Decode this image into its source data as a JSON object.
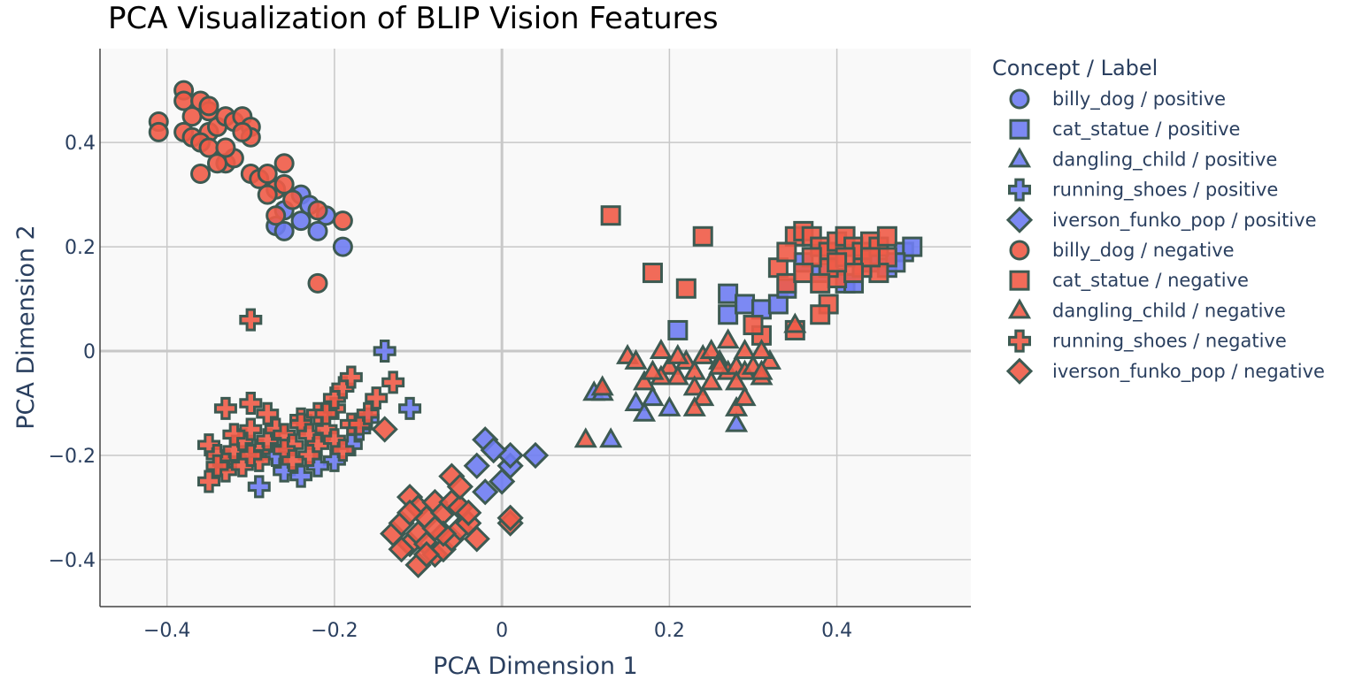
{
  "chart_data": {
    "type": "scatter",
    "title": "PCA Visualization of BLIP Vision Features",
    "xlabel": "PCA Dimension 1",
    "ylabel": "PCA Dimension 2",
    "xlim": [
      -0.48,
      0.56
    ],
    "ylim": [
      -0.49,
      0.58
    ],
    "xticks": [
      -0.4,
      -0.2,
      0,
      0.2,
      0.4
    ],
    "xtick_labels": [
      "−0.4",
      "−0.2",
      "0",
      "0.2",
      "0.4"
    ],
    "yticks": [
      -0.4,
      -0.2,
      0,
      0.2,
      0.4
    ],
    "ytick_labels": [
      "−0.4",
      "−0.2",
      "0",
      "0.2",
      "0.4"
    ],
    "grid": true,
    "legend_title": "Concept / Label",
    "legend_position": "right",
    "colors": {
      "positive": "#6e7cf2",
      "negative": "#ef5b47",
      "marker_outline": "#3d5a52",
      "grid": "#c8c8c8",
      "plot_bg": "#f9f9f9"
    },
    "series": [
      {
        "name": "billy_dog / positive",
        "marker": "circle",
        "label": "positive",
        "points": [
          [
            -0.27,
            0.24
          ],
          [
            -0.26,
            0.23
          ],
          [
            -0.24,
            0.3
          ],
          [
            -0.24,
            0.25
          ],
          [
            -0.22,
            0.23
          ],
          [
            -0.21,
            0.26
          ],
          [
            -0.19,
            0.2
          ],
          [
            -0.26,
            0.27
          ],
          [
            -0.23,
            0.28
          ]
        ]
      },
      {
        "name": "cat_statue / positive",
        "marker": "square",
        "label": "positive",
        "points": [
          [
            0.21,
            0.04
          ],
          [
            0.27,
            0.11
          ],
          [
            0.27,
            0.07
          ],
          [
            0.29,
            0.09
          ],
          [
            0.31,
            0.08
          ],
          [
            0.33,
            0.09
          ],
          [
            0.34,
            0.12
          ],
          [
            0.38,
            0.15
          ],
          [
            0.41,
            0.13
          ],
          [
            0.42,
            0.13
          ],
          [
            0.44,
            0.17
          ],
          [
            0.46,
            0.16
          ],
          [
            0.48,
            0.19
          ],
          [
            0.49,
            0.2
          ],
          [
            0.47,
            0.17
          ],
          [
            0.36,
            0.17
          ]
        ]
      },
      {
        "name": "dangling_child / positive",
        "marker": "triangle",
        "label": "positive",
        "points": [
          [
            0.11,
            -0.08
          ],
          [
            0.12,
            -0.08
          ],
          [
            0.16,
            -0.1
          ],
          [
            0.17,
            -0.12
          ],
          [
            0.2,
            -0.11
          ],
          [
            0.28,
            -0.14
          ],
          [
            0.13,
            -0.17
          ],
          [
            0.18,
            -0.09
          ]
        ]
      },
      {
        "name": "running_shoes / positive",
        "marker": "cross",
        "label": "positive",
        "points": [
          [
            -0.14,
            0.0
          ],
          [
            -0.11,
            -0.11
          ],
          [
            -0.29,
            -0.26
          ],
          [
            -0.26,
            -0.23
          ],
          [
            -0.24,
            -0.24
          ],
          [
            -0.2,
            -0.21
          ],
          [
            -0.18,
            -0.18
          ],
          [
            -0.17,
            -0.15
          ],
          [
            -0.16,
            -0.13
          ],
          [
            -0.22,
            -0.22
          ],
          [
            -0.27,
            -0.2
          ]
        ]
      },
      {
        "name": "iverson_funko_pop / positive",
        "marker": "diamond",
        "label": "positive",
        "points": [
          [
            -0.02,
            -0.17
          ],
          [
            -0.03,
            -0.22
          ],
          [
            -0.02,
            -0.27
          ],
          [
            0.0,
            -0.25
          ],
          [
            0.01,
            -0.22
          ],
          [
            0.01,
            -0.2
          ],
          [
            0.04,
            -0.2
          ],
          [
            -0.01,
            -0.19
          ]
        ]
      },
      {
        "name": "billy_dog / negative",
        "marker": "circle",
        "label": "negative",
        "points": [
          [
            -0.41,
            0.44
          ],
          [
            -0.41,
            0.42
          ],
          [
            -0.38,
            0.5
          ],
          [
            -0.38,
            0.48
          ],
          [
            -0.37,
            0.45
          ],
          [
            -0.36,
            0.48
          ],
          [
            -0.35,
            0.46
          ],
          [
            -0.35,
            0.42
          ],
          [
            -0.34,
            0.43
          ],
          [
            -0.33,
            0.45
          ],
          [
            -0.32,
            0.44
          ],
          [
            -0.31,
            0.45
          ],
          [
            -0.3,
            0.43
          ],
          [
            -0.3,
            0.41
          ],
          [
            -0.38,
            0.42
          ],
          [
            -0.37,
            0.41
          ],
          [
            -0.36,
            0.4
          ],
          [
            -0.35,
            0.39
          ],
          [
            -0.33,
            0.36
          ],
          [
            -0.32,
            0.37
          ],
          [
            -0.36,
            0.34
          ],
          [
            -0.34,
            0.36
          ],
          [
            -0.3,
            0.34
          ],
          [
            -0.29,
            0.33
          ],
          [
            -0.28,
            0.34
          ],
          [
            -0.26,
            0.36
          ],
          [
            -0.27,
            0.31
          ],
          [
            -0.26,
            0.32
          ],
          [
            -0.28,
            0.3
          ],
          [
            -0.25,
            0.29
          ],
          [
            -0.22,
            0.27
          ],
          [
            -0.27,
            0.26
          ],
          [
            -0.19,
            0.25
          ],
          [
            -0.22,
            0.13
          ],
          [
            -0.31,
            0.42
          ],
          [
            -0.35,
            0.47
          ],
          [
            -0.33,
            0.39
          ]
        ]
      },
      {
        "name": "cat_statue / negative",
        "marker": "square",
        "label": "negative",
        "points": [
          [
            0.13,
            0.26
          ],
          [
            0.24,
            0.22
          ],
          [
            0.18,
            0.15
          ],
          [
            0.22,
            0.12
          ],
          [
            0.33,
            0.16
          ],
          [
            0.34,
            0.13
          ],
          [
            0.35,
            0.22
          ],
          [
            0.36,
            0.23
          ],
          [
            0.37,
            0.22
          ],
          [
            0.38,
            0.2
          ],
          [
            0.39,
            0.19
          ],
          [
            0.4,
            0.21
          ],
          [
            0.41,
            0.22
          ],
          [
            0.42,
            0.2
          ],
          [
            0.43,
            0.19
          ],
          [
            0.44,
            0.21
          ],
          [
            0.45,
            0.2
          ],
          [
            0.46,
            0.22
          ],
          [
            0.46,
            0.18
          ],
          [
            0.45,
            0.15
          ],
          [
            0.43,
            0.16
          ],
          [
            0.4,
            0.14
          ],
          [
            0.39,
            0.16
          ],
          [
            0.37,
            0.18
          ],
          [
            0.36,
            0.15
          ],
          [
            0.38,
            0.13
          ],
          [
            0.39,
            0.09
          ],
          [
            0.38,
            0.07
          ],
          [
            0.35,
            0.04
          ],
          [
            0.31,
            0.03
          ],
          [
            0.3,
            0.05
          ],
          [
            0.34,
            0.19
          ],
          [
            0.41,
            0.18
          ],
          [
            0.44,
            0.18
          ],
          [
            0.42,
            0.15
          ],
          [
            0.4,
            0.17
          ]
        ]
      },
      {
        "name": "dangling_child / negative",
        "marker": "triangle",
        "label": "negative",
        "points": [
          [
            0.15,
            -0.01
          ],
          [
            0.16,
            -0.02
          ],
          [
            0.19,
            0.0
          ],
          [
            0.2,
            -0.03
          ],
          [
            0.21,
            -0.05
          ],
          [
            0.22,
            -0.02
          ],
          [
            0.23,
            -0.04
          ],
          [
            0.24,
            -0.01
          ],
          [
            0.25,
            0.0
          ],
          [
            0.26,
            -0.02
          ],
          [
            0.27,
            -0.04
          ],
          [
            0.28,
            -0.03
          ],
          [
            0.29,
            -0.04
          ],
          [
            0.3,
            -0.03
          ],
          [
            0.31,
            -0.05
          ],
          [
            0.32,
            -0.02
          ],
          [
            0.29,
            0.0
          ],
          [
            0.31,
            0.0
          ],
          [
            0.35,
            0.05
          ],
          [
            0.12,
            -0.07
          ],
          [
            0.17,
            -0.06
          ],
          [
            0.19,
            -0.05
          ],
          [
            0.23,
            -0.07
          ],
          [
            0.24,
            -0.09
          ],
          [
            0.25,
            -0.06
          ],
          [
            0.28,
            -0.11
          ],
          [
            0.29,
            -0.09
          ],
          [
            0.23,
            -0.11
          ],
          [
            0.1,
            -0.17
          ],
          [
            0.27,
            0.02
          ],
          [
            0.31,
            -0.04
          ],
          [
            0.28,
            -0.06
          ],
          [
            0.21,
            -0.01
          ],
          [
            0.18,
            -0.04
          ],
          [
            0.26,
            -0.03
          ]
        ]
      },
      {
        "name": "running_shoes / negative",
        "marker": "cross",
        "label": "negative",
        "points": [
          [
            -0.3,
            0.06
          ],
          [
            -0.33,
            -0.11
          ],
          [
            -0.3,
            -0.1
          ],
          [
            -0.28,
            -0.12
          ],
          [
            -0.24,
            -0.13
          ],
          [
            -0.22,
            -0.12
          ],
          [
            -0.2,
            -0.11
          ],
          [
            -0.2,
            -0.09
          ],
          [
            -0.19,
            -0.07
          ],
          [
            -0.18,
            -0.05
          ],
          [
            -0.15,
            -0.09
          ],
          [
            -0.13,
            -0.06
          ],
          [
            -0.35,
            -0.18
          ],
          [
            -0.34,
            -0.2
          ],
          [
            -0.33,
            -0.21
          ],
          [
            -0.32,
            -0.19
          ],
          [
            -0.31,
            -0.17
          ],
          [
            -0.3,
            -0.15
          ],
          [
            -0.29,
            -0.19
          ],
          [
            -0.28,
            -0.17
          ],
          [
            -0.27,
            -0.15
          ],
          [
            -0.26,
            -0.16
          ],
          [
            -0.25,
            -0.18
          ],
          [
            -0.24,
            -0.14
          ],
          [
            -0.23,
            -0.16
          ],
          [
            -0.22,
            -0.18
          ],
          [
            -0.21,
            -0.15
          ],
          [
            -0.2,
            -0.17
          ],
          [
            -0.19,
            -0.19
          ],
          [
            -0.18,
            -0.14
          ],
          [
            -0.35,
            -0.25
          ],
          [
            -0.33,
            -0.23
          ],
          [
            -0.31,
            -0.22
          ],
          [
            -0.29,
            -0.21
          ],
          [
            -0.26,
            -0.19
          ],
          [
            -0.23,
            -0.2
          ],
          [
            -0.21,
            -0.12
          ],
          [
            -0.34,
            -0.22
          ],
          [
            -0.32,
            -0.16
          ],
          [
            -0.3,
            -0.2
          ],
          [
            -0.17,
            -0.14
          ],
          [
            -0.16,
            -0.12
          ],
          [
            -0.25,
            -0.21
          ]
        ]
      },
      {
        "name": "iverson_funko_pop / negative",
        "marker": "diamond",
        "label": "negative",
        "points": [
          [
            -0.14,
            -0.15
          ],
          [
            -0.11,
            -0.28
          ],
          [
            -0.1,
            -0.3
          ],
          [
            -0.09,
            -0.32
          ],
          [
            -0.08,
            -0.29
          ],
          [
            -0.07,
            -0.31
          ],
          [
            -0.06,
            -0.29
          ],
          [
            -0.05,
            -0.3
          ],
          [
            -0.06,
            -0.24
          ],
          [
            -0.05,
            -0.26
          ],
          [
            -0.13,
            -0.35
          ],
          [
            -0.12,
            -0.33
          ],
          [
            -0.11,
            -0.37
          ],
          [
            -0.1,
            -0.35
          ],
          [
            -0.09,
            -0.37
          ],
          [
            -0.08,
            -0.39
          ],
          [
            -0.07,
            -0.38
          ],
          [
            -0.06,
            -0.36
          ],
          [
            -0.05,
            -0.34
          ],
          [
            -0.04,
            -0.33
          ],
          [
            -0.1,
            -0.41
          ],
          [
            -0.09,
            -0.39
          ],
          [
            -0.07,
            -0.35
          ],
          [
            -0.03,
            -0.36
          ],
          [
            0.01,
            -0.33
          ],
          [
            0.01,
            -0.32
          ],
          [
            -0.08,
            -0.34
          ],
          [
            -0.11,
            -0.31
          ],
          [
            -0.12,
            -0.38
          ],
          [
            -0.04,
            -0.31
          ]
        ]
      }
    ]
  }
}
